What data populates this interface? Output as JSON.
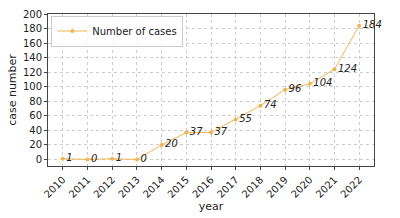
{
  "chart_data": {
    "type": "line",
    "x_label": "year",
    "y_label": "case number",
    "x": [
      2010,
      2011,
      2012,
      2013,
      2014,
      2015,
      2016,
      2017,
      2018,
      2019,
      2020,
      2021,
      2022
    ],
    "series": [
      {
        "name": "Number of cases",
        "color": "#f2b451",
        "marker": "circle",
        "values": [
          1,
          0,
          1,
          0,
          20,
          37,
          37,
          55,
          74,
          96,
          104,
          124,
          184
        ]
      }
    ],
    "xlim": [
      2009.4,
      2022.6
    ],
    "xticks": [
      2010,
      2011,
      2012,
      2013,
      2014,
      2015,
      2016,
      2017,
      2018,
      2019,
      2020,
      2021,
      2022
    ],
    "ylim": [
      -9,
      200
    ],
    "yticks": [
      0,
      20,
      40,
      60,
      80,
      100,
      120,
      140,
      160,
      180,
      200
    ],
    "grid": true,
    "legend": "upper left",
    "data_labels": true
  }
}
